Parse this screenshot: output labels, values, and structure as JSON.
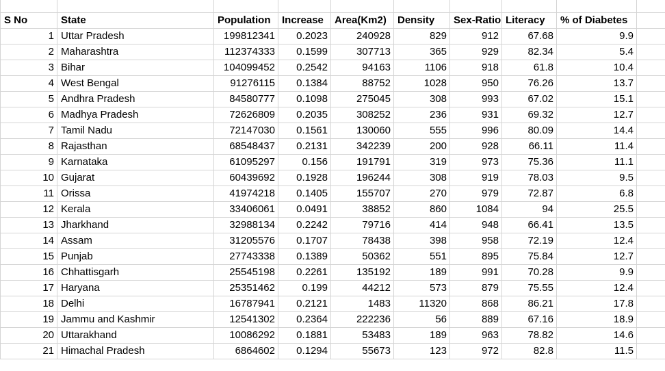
{
  "app": {
    "kind": "spreadsheet-grid"
  },
  "colors": {
    "gridline": "#d4d4d4",
    "text": "#000000",
    "background": "#ffffff"
  },
  "table": {
    "headers": [
      "S No",
      "State",
      "Population",
      "Increase",
      "Area(Km2)",
      "Density",
      "Sex-Ratio",
      "Literacy",
      "% of Diabetes"
    ],
    "rows": [
      [
        "1",
        "Uttar Pradesh",
        "199812341",
        "0.2023",
        "240928",
        "829",
        "912",
        "67.68",
        "9.9"
      ],
      [
        "2",
        "Maharashtra",
        "112374333",
        "0.1599",
        "307713",
        "365",
        "929",
        "82.34",
        "5.4"
      ],
      [
        "3",
        "Bihar",
        "104099452",
        "0.2542",
        "94163",
        "1106",
        "918",
        "61.8",
        "10.4"
      ],
      [
        "4",
        "West Bengal",
        "91276115",
        "0.1384",
        "88752",
        "1028",
        "950",
        "76.26",
        "13.7"
      ],
      [
        "5",
        "Andhra Pradesh",
        "84580777",
        "0.1098",
        "275045",
        "308",
        "993",
        "67.02",
        "15.1"
      ],
      [
        "6",
        "Madhya Pradesh",
        "72626809",
        "0.2035",
        "308252",
        "236",
        "931",
        "69.32",
        "12.7"
      ],
      [
        "7",
        "Tamil Nadu",
        "72147030",
        "0.1561",
        "130060",
        "555",
        "996",
        "80.09",
        "14.4"
      ],
      [
        "8",
        "Rajasthan",
        "68548437",
        "0.2131",
        "342239",
        "200",
        "928",
        "66.11",
        "11.4"
      ],
      [
        "9",
        "Karnataka",
        "61095297",
        "0.156",
        "191791",
        "319",
        "973",
        "75.36",
        "11.1"
      ],
      [
        "10",
        "Gujarat",
        "60439692",
        "0.1928",
        "196244",
        "308",
        "919",
        "78.03",
        "9.5"
      ],
      [
        "11",
        "Orissa",
        "41974218",
        "0.1405",
        "155707",
        "270",
        "979",
        "72.87",
        "6.8"
      ],
      [
        "12",
        "Kerala",
        "33406061",
        "0.0491",
        "38852",
        "860",
        "1084",
        "94",
        "25.5"
      ],
      [
        "13",
        "Jharkhand",
        "32988134",
        "0.2242",
        "79716",
        "414",
        "948",
        "66.41",
        "13.5"
      ],
      [
        "14",
        "Assam",
        "31205576",
        "0.1707",
        "78438",
        "398",
        "958",
        "72.19",
        "12.4"
      ],
      [
        "15",
        "Punjab",
        "27743338",
        "0.1389",
        "50362",
        "551",
        "895",
        "75.84",
        "12.7"
      ],
      [
        "16",
        "Chhattisgarh",
        "25545198",
        "0.2261",
        "135192",
        "189",
        "991",
        "70.28",
        "9.9"
      ],
      [
        "17",
        "Haryana",
        "25351462",
        "0.199",
        "44212",
        "573",
        "879",
        "75.55",
        "12.4"
      ],
      [
        "18",
        "Delhi",
        "16787941",
        "0.2121",
        "1483",
        "11320",
        "868",
        "86.21",
        "17.8"
      ],
      [
        "19",
        "Jammu and Kashmir",
        "12541302",
        "0.2364",
        "222236",
        "56",
        "889",
        "67.16",
        "18.9"
      ],
      [
        "20",
        "Uttarakhand",
        "10086292",
        "0.1881",
        "53483",
        "189",
        "963",
        "78.82",
        "14.6"
      ],
      [
        "21",
        "Himachal Pradesh",
        "6864602",
        "0.1294",
        "55673",
        "123",
        "972",
        "82.8",
        "11.5"
      ]
    ]
  }
}
